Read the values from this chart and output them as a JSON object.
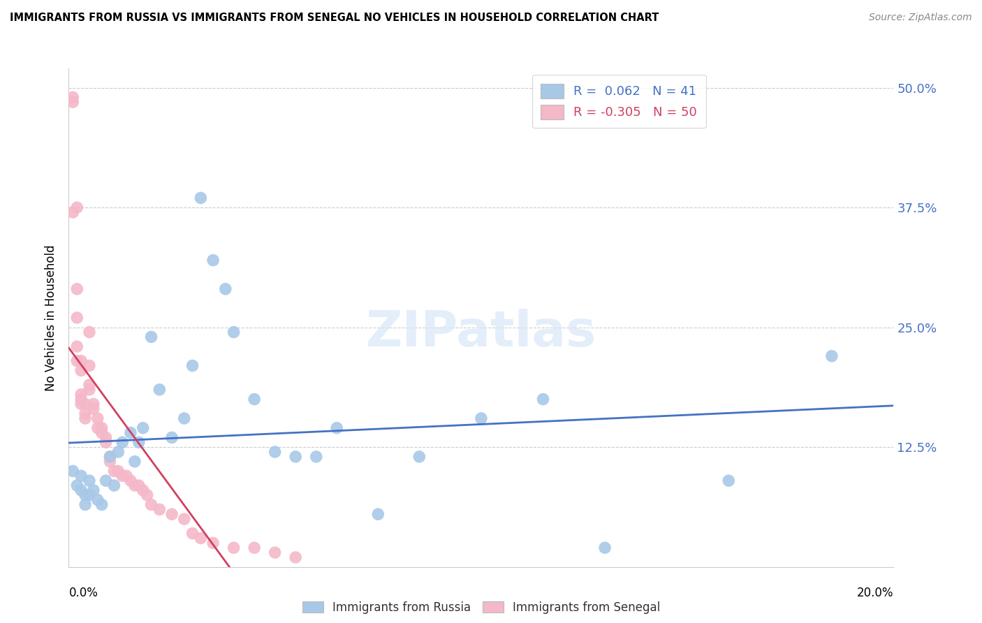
{
  "title": "IMMIGRANTS FROM RUSSIA VS IMMIGRANTS FROM SENEGAL NO VEHICLES IN HOUSEHOLD CORRELATION CHART",
  "source": "Source: ZipAtlas.com",
  "ylabel": "No Vehicles in Household",
  "xlim": [
    0.0,
    0.2
  ],
  "ylim": [
    0.0,
    0.52
  ],
  "russia_R": 0.062,
  "russia_N": 41,
  "senegal_R": -0.305,
  "senegal_N": 50,
  "russia_color": "#a8c8e8",
  "russia_line_color": "#4472c4",
  "senegal_color": "#f4b8c8",
  "senegal_line_color": "#d04060",
  "russia_x": [
    0.001,
    0.002,
    0.003,
    0.003,
    0.004,
    0.004,
    0.005,
    0.005,
    0.006,
    0.007,
    0.008,
    0.009,
    0.01,
    0.011,
    0.012,
    0.013,
    0.015,
    0.016,
    0.017,
    0.018,
    0.02,
    0.022,
    0.025,
    0.028,
    0.03,
    0.032,
    0.035,
    0.038,
    0.04,
    0.045,
    0.05,
    0.055,
    0.06,
    0.065,
    0.075,
    0.085,
    0.1,
    0.115,
    0.13,
    0.16,
    0.185
  ],
  "russia_y": [
    0.1,
    0.085,
    0.095,
    0.08,
    0.075,
    0.065,
    0.09,
    0.075,
    0.08,
    0.07,
    0.065,
    0.09,
    0.115,
    0.085,
    0.12,
    0.13,
    0.14,
    0.11,
    0.13,
    0.145,
    0.24,
    0.185,
    0.135,
    0.155,
    0.21,
    0.385,
    0.32,
    0.29,
    0.245,
    0.175,
    0.12,
    0.115,
    0.115,
    0.145,
    0.055,
    0.115,
    0.155,
    0.175,
    0.02,
    0.09,
    0.22
  ],
  "senegal_x": [
    0.001,
    0.001,
    0.001,
    0.002,
    0.002,
    0.002,
    0.002,
    0.002,
    0.003,
    0.003,
    0.003,
    0.003,
    0.003,
    0.004,
    0.004,
    0.004,
    0.005,
    0.005,
    0.005,
    0.005,
    0.006,
    0.006,
    0.007,
    0.007,
    0.008,
    0.008,
    0.009,
    0.009,
    0.01,
    0.01,
    0.011,
    0.012,
    0.013,
    0.014,
    0.015,
    0.016,
    0.017,
    0.018,
    0.019,
    0.02,
    0.022,
    0.025,
    0.028,
    0.03,
    0.032,
    0.035,
    0.04,
    0.045,
    0.05,
    0.055
  ],
  "senegal_y": [
    0.49,
    0.485,
    0.37,
    0.375,
    0.29,
    0.26,
    0.23,
    0.215,
    0.215,
    0.205,
    0.18,
    0.175,
    0.17,
    0.16,
    0.155,
    0.17,
    0.245,
    0.21,
    0.19,
    0.185,
    0.17,
    0.165,
    0.155,
    0.145,
    0.145,
    0.14,
    0.135,
    0.13,
    0.115,
    0.11,
    0.1,
    0.1,
    0.095,
    0.095,
    0.09,
    0.085,
    0.085,
    0.08,
    0.075,
    0.065,
    0.06,
    0.055,
    0.05,
    0.035,
    0.03,
    0.025,
    0.02,
    0.02,
    0.015,
    0.01
  ],
  "watermark": "ZIPatlas",
  "grid_color": "#cccccc",
  "ytick_vals": [
    0.0,
    0.125,
    0.25,
    0.375,
    0.5
  ],
  "ytick_labels": [
    "",
    "12.5%",
    "25.0%",
    "37.5%",
    "50.0%"
  ]
}
